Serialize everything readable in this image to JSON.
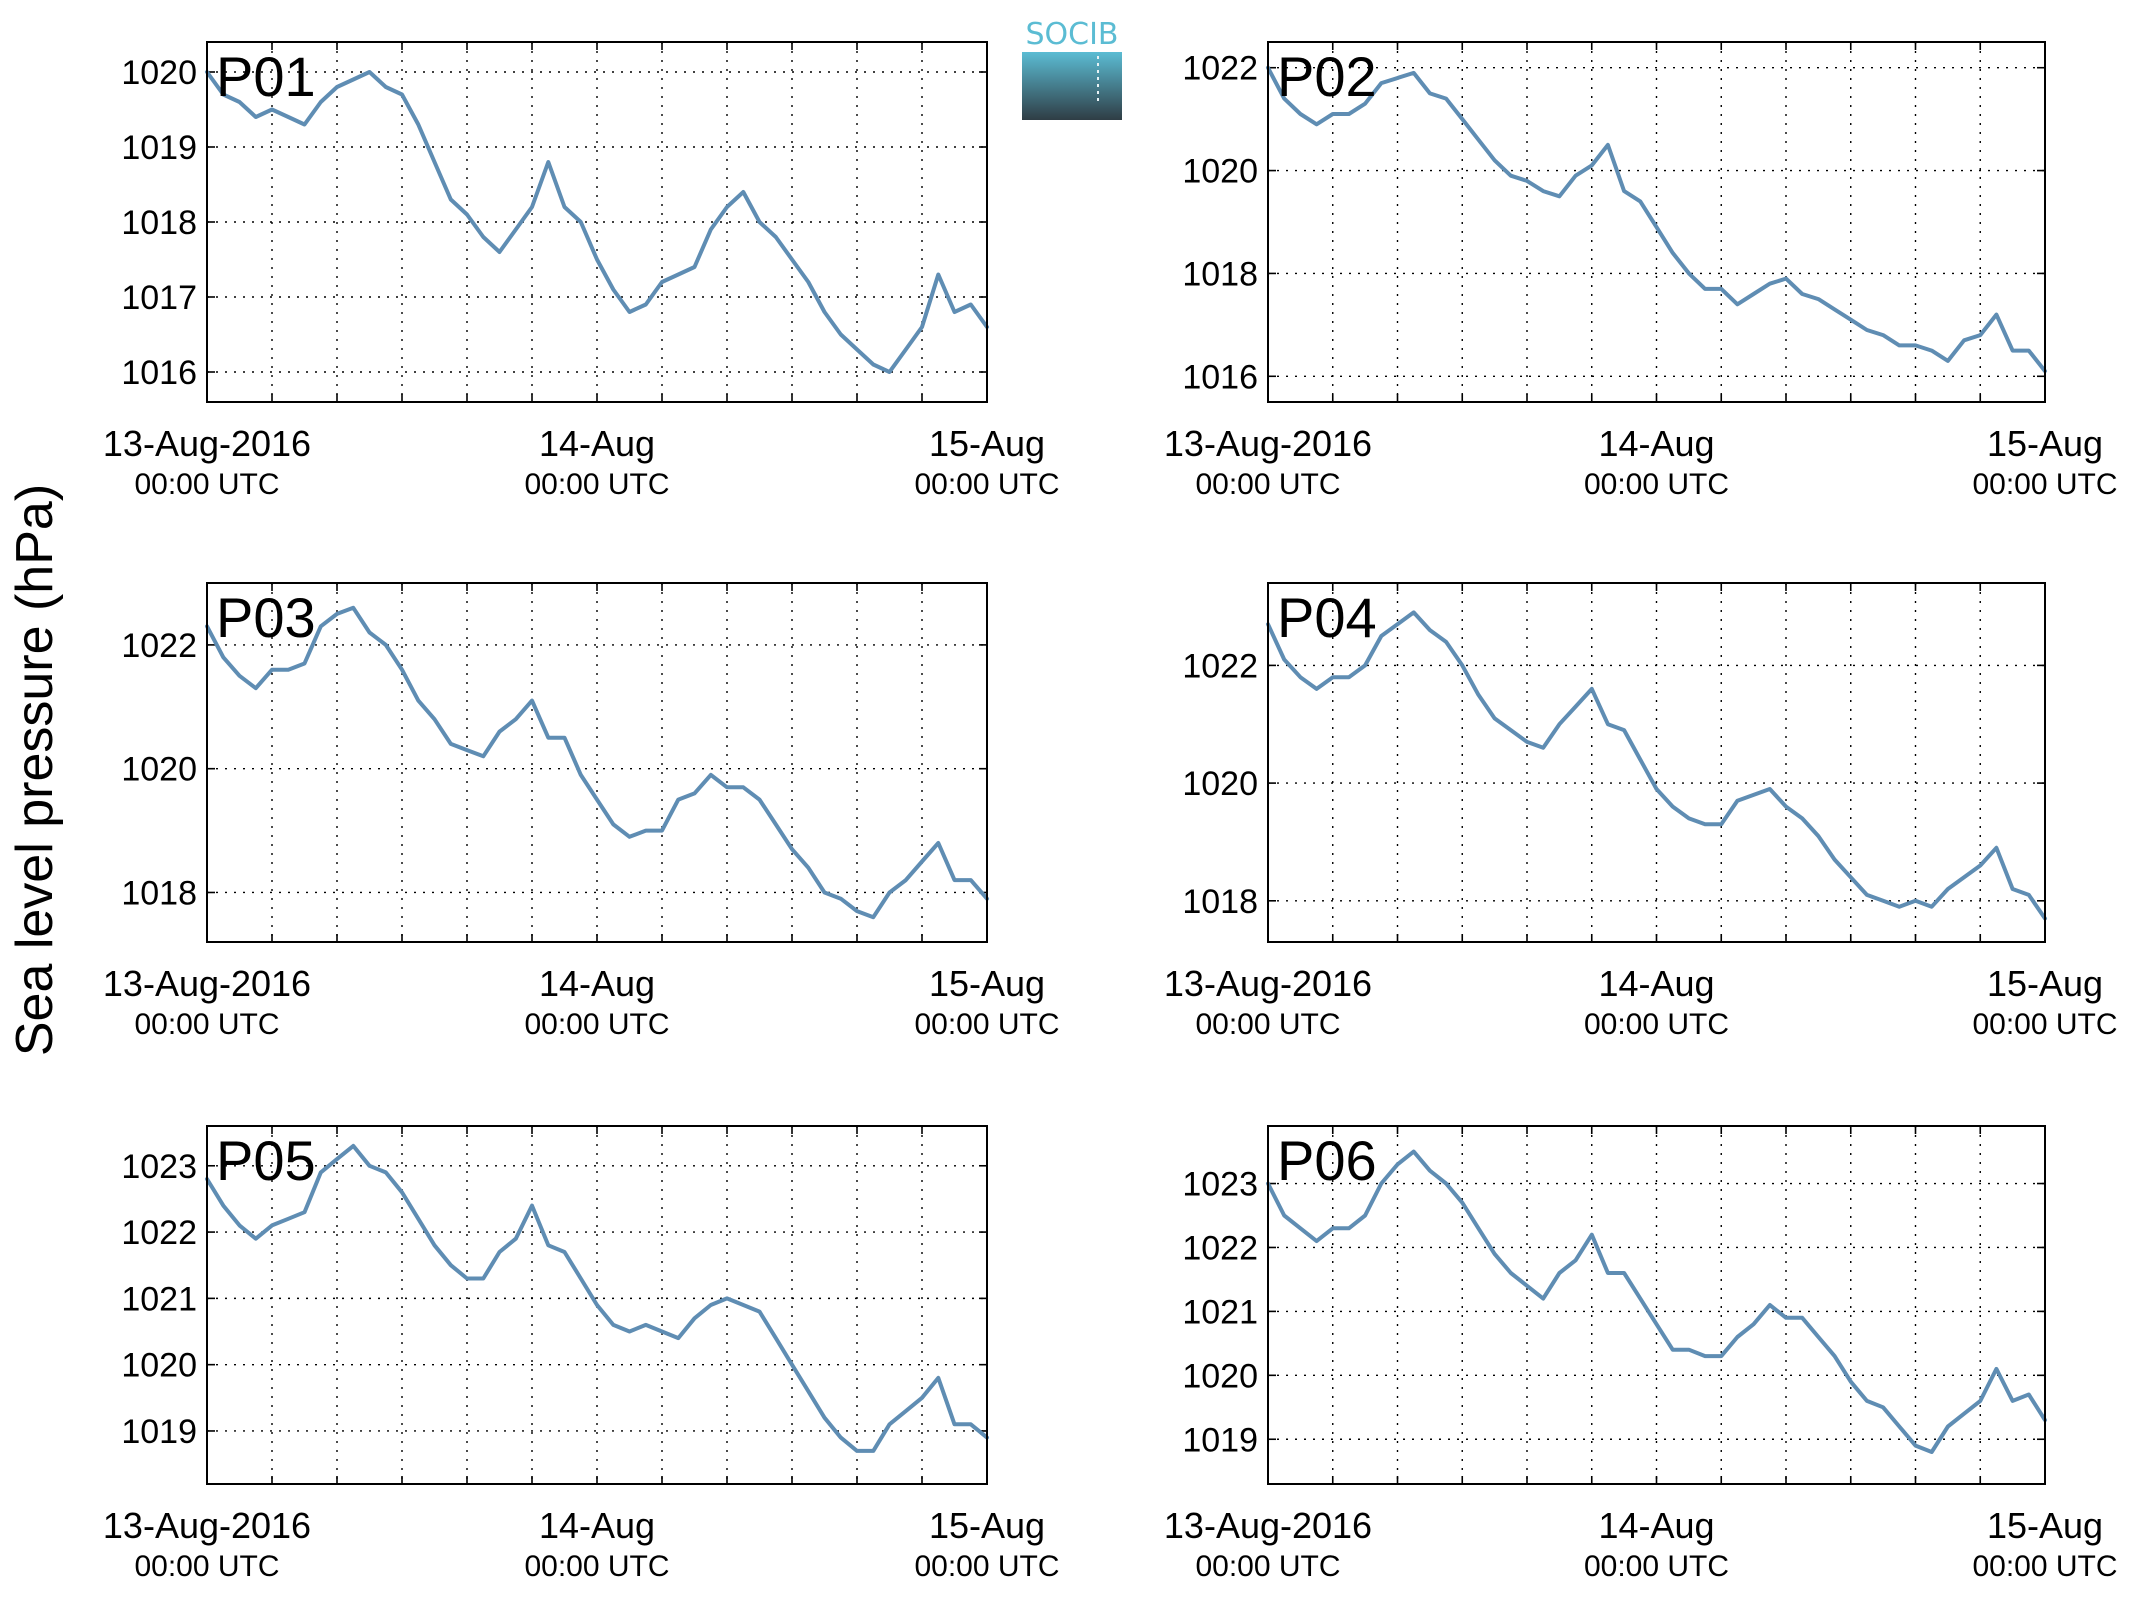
{
  "figure": {
    "ylabel": "Sea level pressure (hPa)",
    "logo_text": "SOCIB",
    "colors": {
      "line": "#5f8db3",
      "panel_label": "#ff0000",
      "logo_top": "#5bbcd3",
      "logo_bottom": "#2f3d45"
    }
  },
  "chart_data": [
    {
      "type": "line",
      "label": "P01",
      "x_ticks": [
        {
          "date": "13-Aug-2016",
          "time": "00:00 UTC"
        },
        {
          "date": "14-Aug",
          "time": "00:00 UTC"
        },
        {
          "date": "15-Aug",
          "time": "00:00 UTC"
        }
      ],
      "x_hours": [
        0,
        4,
        8,
        12,
        16,
        20,
        24,
        28,
        32,
        36,
        40,
        44,
        48
      ],
      "xlim_hours": [
        0,
        48
      ],
      "y_ticks": [
        "1016",
        "1017",
        "1018",
        "1019",
        "1020"
      ],
      "ylim": [
        1015.6,
        1020.4
      ],
      "grid": true,
      "x": [
        0,
        1,
        2,
        3,
        4,
        5,
        6,
        7,
        8,
        9,
        10,
        11,
        12,
        13,
        14,
        15,
        16,
        17,
        18,
        19,
        20,
        21,
        22,
        23,
        24,
        25,
        26,
        27,
        28,
        29,
        30,
        31,
        32,
        33,
        34,
        35,
        36,
        37,
        38,
        39,
        40,
        41,
        42,
        43,
        44,
        45,
        46,
        47,
        48
      ],
      "values": [
        1020.0,
        1019.7,
        1019.6,
        1019.4,
        1019.5,
        1019.4,
        1019.3,
        1019.6,
        1019.8,
        1019.9,
        1020.0,
        1019.8,
        1019.7,
        1019.3,
        1018.8,
        1018.3,
        1018.1,
        1017.8,
        1017.6,
        1017.9,
        1018.2,
        1018.8,
        1018.2,
        1018.0,
        1017.5,
        1017.1,
        1016.8,
        1016.9,
        1017.2,
        1017.3,
        1017.4,
        1017.9,
        1018.2,
        1018.4,
        1018.0,
        1017.8,
        1017.5,
        1017.2,
        1016.8,
        1016.5,
        1016.3,
        1016.1,
        1016.0,
        1016.3,
        1016.6,
        1017.3,
        1016.8,
        1016.9,
        1016.6
      ]
    },
    {
      "type": "line",
      "label": "P02",
      "x_ticks": [
        {
          "date": "13-Aug-2016",
          "time": "00:00 UTC"
        },
        {
          "date": "14-Aug",
          "time": "00:00 UTC"
        },
        {
          "date": "15-Aug",
          "time": "00:00 UTC"
        }
      ],
      "x_hours": [
        0,
        4,
        8,
        12,
        16,
        20,
        24,
        28,
        32,
        36,
        40,
        44,
        48
      ],
      "xlim_hours": [
        0,
        48
      ],
      "y_ticks": [
        "1016",
        "1018",
        "1020",
        "1022"
      ],
      "ylim": [
        1015.5,
        1022.5
      ],
      "grid": true,
      "x": [
        0,
        1,
        2,
        3,
        4,
        5,
        6,
        7,
        8,
        9,
        10,
        11,
        12,
        13,
        14,
        15,
        16,
        17,
        18,
        19,
        20,
        21,
        22,
        23,
        24,
        25,
        26,
        27,
        28,
        29,
        30,
        31,
        32,
        33,
        34,
        35,
        36,
        37,
        38,
        39,
        40,
        41,
        42,
        43,
        44,
        45,
        46,
        47,
        48
      ],
      "values": [
        1022.0,
        1021.4,
        1021.1,
        1020.9,
        1021.1,
        1021.1,
        1021.3,
        1021.7,
        1021.8,
        1021.9,
        1021.5,
        1021.4,
        1021.0,
        1020.6,
        1020.2,
        1019.9,
        1019.8,
        1019.6,
        1019.5,
        1019.9,
        1020.1,
        1020.5,
        1019.6,
        1019.4,
        1018.9,
        1018.4,
        1018.0,
        1017.7,
        1017.7,
        1017.4,
        1017.6,
        1017.8,
        1017.9,
        1017.6,
        1017.5,
        1017.3,
        1017.1,
        1016.9,
        1016.8,
        1016.6,
        1016.6,
        1016.5,
        1016.3,
        1016.7,
        1016.8,
        1017.2,
        1016.5,
        1016.5,
        1016.1
      ]
    },
    {
      "type": "line",
      "label": "P03",
      "x_ticks": [
        {
          "date": "13-Aug-2016",
          "time": "00:00 UTC"
        },
        {
          "date": "14-Aug",
          "time": "00:00 UTC"
        },
        {
          "date": "15-Aug",
          "time": "00:00 UTC"
        }
      ],
      "x_hours": [
        0,
        4,
        8,
        12,
        16,
        20,
        24,
        28,
        32,
        36,
        40,
        44,
        48
      ],
      "xlim_hours": [
        0,
        48
      ],
      "y_ticks": [
        "1018",
        "1020",
        "1022"
      ],
      "ylim": [
        1017.2,
        1023.0
      ],
      "grid": true,
      "x": [
        0,
        1,
        2,
        3,
        4,
        5,
        6,
        7,
        8,
        9,
        10,
        11,
        12,
        13,
        14,
        15,
        16,
        17,
        18,
        19,
        20,
        21,
        22,
        23,
        24,
        25,
        26,
        27,
        28,
        29,
        30,
        31,
        32,
        33,
        34,
        35,
        36,
        37,
        38,
        39,
        40,
        41,
        42,
        43,
        44,
        45,
        46,
        47,
        48
      ],
      "values": [
        1022.3,
        1021.8,
        1021.5,
        1021.3,
        1021.6,
        1021.6,
        1021.7,
        1022.3,
        1022.5,
        1022.6,
        1022.2,
        1022.0,
        1021.6,
        1021.1,
        1020.8,
        1020.4,
        1020.3,
        1020.2,
        1020.6,
        1020.8,
        1021.1,
        1020.5,
        1020.5,
        1019.9,
        1019.5,
        1019.1,
        1018.9,
        1019.0,
        1019.0,
        1019.5,
        1019.6,
        1019.9,
        1019.7,
        1019.7,
        1019.5,
        1019.1,
        1018.7,
        1018.4,
        1018.0,
        1017.9,
        1017.7,
        1017.6,
        1018.0,
        1018.2,
        1018.5,
        1018.8,
        1018.2,
        1018.2,
        1017.9
      ]
    },
    {
      "type": "line",
      "label": "P04",
      "x_ticks": [
        {
          "date": "13-Aug-2016",
          "time": "00:00 UTC"
        },
        {
          "date": "14-Aug",
          "time": "00:00 UTC"
        },
        {
          "date": "15-Aug",
          "time": "00:00 UTC"
        }
      ],
      "x_hours": [
        0,
        4,
        8,
        12,
        16,
        20,
        24,
        28,
        32,
        36,
        40,
        44,
        48
      ],
      "xlim_hours": [
        0,
        48
      ],
      "y_ticks": [
        "1018",
        "1020",
        "1022"
      ],
      "ylim": [
        1017.3,
        1023.4
      ],
      "grid": true,
      "x": [
        0,
        1,
        2,
        3,
        4,
        5,
        6,
        7,
        8,
        9,
        10,
        11,
        12,
        13,
        14,
        15,
        16,
        17,
        18,
        19,
        20,
        21,
        22,
        23,
        24,
        25,
        26,
        27,
        28,
        29,
        30,
        31,
        32,
        33,
        34,
        35,
        36,
        37,
        38,
        39,
        40,
        41,
        42,
        43,
        44,
        45,
        46,
        47,
        48
      ],
      "values": [
        1022.7,
        1022.1,
        1021.8,
        1021.6,
        1021.8,
        1021.8,
        1022.0,
        1022.5,
        1022.7,
        1022.9,
        1022.6,
        1022.4,
        1022.0,
        1021.5,
        1021.1,
        1020.9,
        1020.7,
        1020.6,
        1021.0,
        1021.3,
        1021.6,
        1021.0,
        1020.9,
        1020.4,
        1019.9,
        1019.6,
        1019.4,
        1019.3,
        1019.3,
        1019.7,
        1019.8,
        1019.9,
        1019.6,
        1019.4,
        1019.1,
        1018.7,
        1018.4,
        1018.1,
        1018.0,
        1017.9,
        1018.0,
        1017.9,
        1018.2,
        1018.4,
        1018.6,
        1018.9,
        1018.2,
        1018.1,
        1017.7
      ]
    },
    {
      "type": "line",
      "label": "P05",
      "x_ticks": [
        {
          "date": "13-Aug-2016",
          "time": "00:00 UTC"
        },
        {
          "date": "14-Aug",
          "time": "00:00 UTC"
        },
        {
          "date": "15-Aug",
          "time": "00:00 UTC"
        }
      ],
      "x_hours": [
        0,
        4,
        8,
        12,
        16,
        20,
        24,
        28,
        32,
        36,
        40,
        44,
        48
      ],
      "xlim_hours": [
        0,
        48
      ],
      "y_ticks": [
        "1019",
        "1020",
        "1021",
        "1022",
        "1023"
      ],
      "ylim": [
        1018.2,
        1023.6
      ],
      "grid": true,
      "x": [
        0,
        1,
        2,
        3,
        4,
        5,
        6,
        7,
        8,
        9,
        10,
        11,
        12,
        13,
        14,
        15,
        16,
        17,
        18,
        19,
        20,
        21,
        22,
        23,
        24,
        25,
        26,
        27,
        28,
        29,
        30,
        31,
        32,
        33,
        34,
        35,
        36,
        37,
        38,
        39,
        40,
        41,
        42,
        43,
        44,
        45,
        46,
        47,
        48
      ],
      "values": [
        1022.8,
        1022.4,
        1022.1,
        1021.9,
        1022.1,
        1022.2,
        1022.3,
        1022.9,
        1023.1,
        1023.3,
        1023.0,
        1022.9,
        1022.6,
        1022.2,
        1021.8,
        1021.5,
        1021.3,
        1021.3,
        1021.7,
        1021.9,
        1022.4,
        1021.8,
        1021.7,
        1021.3,
        1020.9,
        1020.6,
        1020.5,
        1020.6,
        1020.5,
        1020.4,
        1020.7,
        1020.9,
        1021.0,
        1020.9,
        1020.8,
        1020.4,
        1020.0,
        1019.6,
        1019.2,
        1018.9,
        1018.7,
        1018.7,
        1019.1,
        1019.3,
        1019.5,
        1019.8,
        1019.1,
        1019.1,
        1018.9
      ]
    },
    {
      "type": "line",
      "label": "P06",
      "x_ticks": [
        {
          "date": "13-Aug-2016",
          "time": "00:00 UTC"
        },
        {
          "date": "14-Aug",
          "time": "00:00 UTC"
        },
        {
          "date": "15-Aug",
          "time": "00:00 UTC"
        }
      ],
      "x_hours": [
        0,
        4,
        8,
        12,
        16,
        20,
        24,
        28,
        32,
        36,
        40,
        44,
        48
      ],
      "xlim_hours": [
        0,
        48
      ],
      "y_ticks": [
        "1019",
        "1020",
        "1021",
        "1022",
        "1023"
      ],
      "ylim": [
        1018.3,
        1023.9
      ],
      "grid": true,
      "x": [
        0,
        1,
        2,
        3,
        4,
        5,
        6,
        7,
        8,
        9,
        10,
        11,
        12,
        13,
        14,
        15,
        16,
        17,
        18,
        19,
        20,
        21,
        22,
        23,
        24,
        25,
        26,
        27,
        28,
        29,
        30,
        31,
        32,
        33,
        34,
        35,
        36,
        37,
        38,
        39,
        40,
        41,
        42,
        43,
        44,
        45,
        46,
        47,
        48
      ],
      "values": [
        1023.0,
        1022.5,
        1022.3,
        1022.1,
        1022.3,
        1022.3,
        1022.5,
        1023.0,
        1023.3,
        1023.5,
        1023.2,
        1023.0,
        1022.7,
        1022.3,
        1021.9,
        1021.6,
        1021.4,
        1021.2,
        1021.6,
        1021.8,
        1022.2,
        1021.6,
        1021.6,
        1021.2,
        1020.8,
        1020.4,
        1020.4,
        1020.3,
        1020.3,
        1020.6,
        1020.8,
        1021.1,
        1020.9,
        1020.9,
        1020.6,
        1020.3,
        1019.9,
        1019.6,
        1019.5,
        1019.2,
        1018.9,
        1018.8,
        1019.2,
        1019.4,
        1019.6,
        1020.1,
        1019.6,
        1019.7,
        1019.3
      ]
    }
  ]
}
